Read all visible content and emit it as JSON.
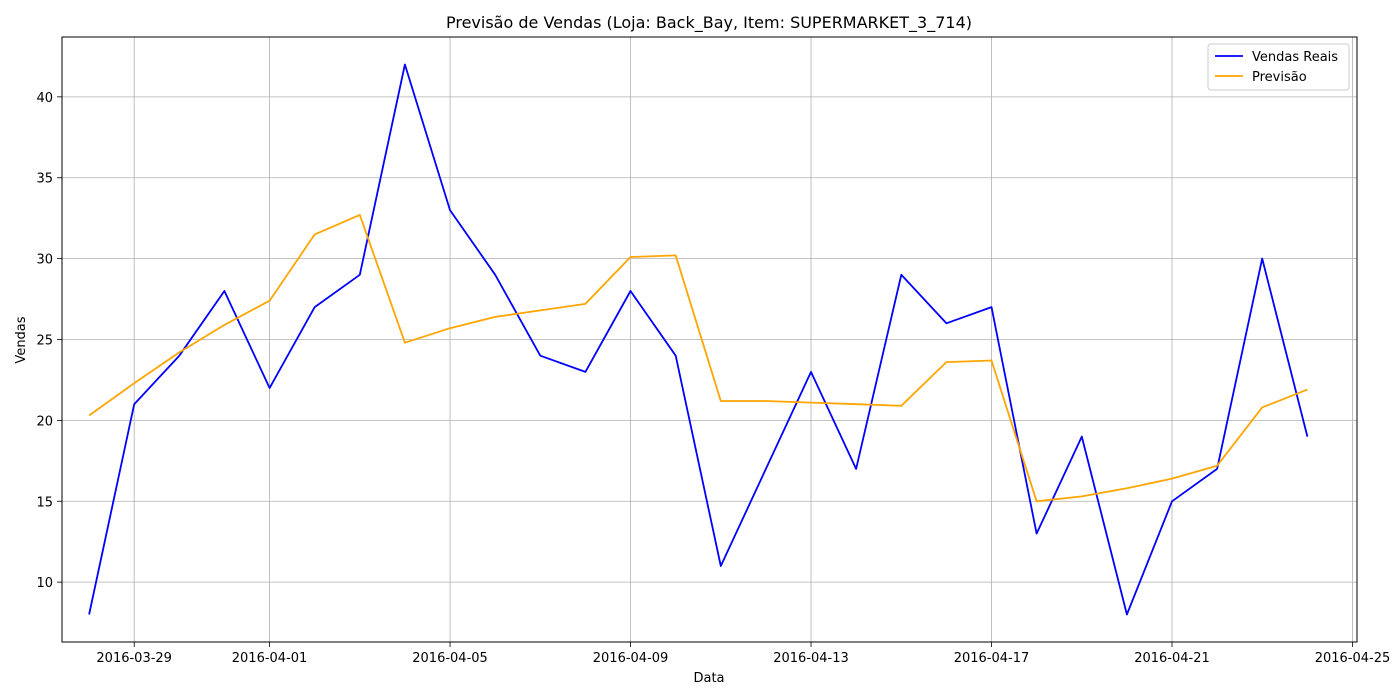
{
  "chart_data": {
    "type": "line",
    "title": "Previsão de Vendas (Loja: Back_Bay, Item: SUPERMARKET_3_714)",
    "xlabel": "Data",
    "ylabel": "Vendas",
    "x": [
      "2016-03-28",
      "2016-03-29",
      "2016-03-30",
      "2016-03-31",
      "2016-04-01",
      "2016-04-02",
      "2016-04-03",
      "2016-04-04",
      "2016-04-05",
      "2016-04-06",
      "2016-04-07",
      "2016-04-08",
      "2016-04-09",
      "2016-04-10",
      "2016-04-11",
      "2016-04-12",
      "2016-04-13",
      "2016-04-14",
      "2016-04-15",
      "2016-04-16",
      "2016-04-17",
      "2016-04-18",
      "2016-04-19",
      "2016-04-20",
      "2016-04-21",
      "2016-04-22",
      "2016-04-23",
      "2016-04-24"
    ],
    "series": [
      {
        "name": "Vendas Reais",
        "color": "#0000ff",
        "values": [
          8,
          21,
          24,
          28,
          22,
          27,
          29,
          42,
          33,
          29,
          24,
          23,
          28,
          24,
          11,
          17,
          23,
          17,
          29,
          26,
          27,
          13,
          19,
          8,
          15,
          17,
          30,
          19
        ]
      },
      {
        "name": "Previsão",
        "color": "#ffa500",
        "values": [
          20.3,
          22.3,
          24.2,
          25.9,
          27.4,
          31.5,
          32.7,
          24.8,
          25.7,
          26.4,
          26.8,
          27.2,
          30.1,
          30.2,
          21.2,
          21.2,
          21.1,
          21.0,
          20.9,
          23.6,
          23.7,
          15.0,
          15.3,
          15.8,
          16.4,
          17.2,
          20.8,
          21.9
        ]
      }
    ],
    "xticks": [
      "2016-03-29",
      "2016-04-01",
      "2016-04-05",
      "2016-04-09",
      "2016-04-13",
      "2016-04-17",
      "2016-04-21",
      "2016-04-25"
    ],
    "yticks": [
      10,
      15,
      20,
      25,
      30,
      35,
      40
    ],
    "xlim": [
      "2016-03-27",
      "2016-04-25"
    ],
    "ylim": [
      6.3,
      43.7
    ],
    "grid": true,
    "legend_position": "top-right"
  }
}
